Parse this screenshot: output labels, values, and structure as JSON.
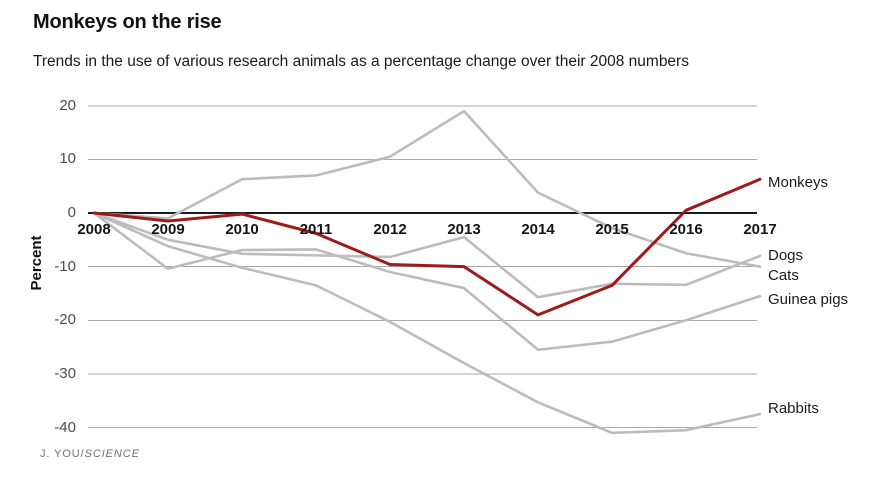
{
  "header": {
    "title": "Monkeys on the rise",
    "subtitle": "Trends in the use of various research animals as a percentage change over their 2008 numbers"
  },
  "credit": {
    "author": "J. YOU/",
    "publication": "SCIENCE"
  },
  "chart_data": {
    "type": "line",
    "title": "Monkeys on the rise",
    "subtitle": "Trends in the use of various research animals as a percentage change over their 2008 numbers",
    "x": [
      2008,
      2009,
      2010,
      2011,
      2012,
      2013,
      2014,
      2015,
      2016,
      2017
    ],
    "xlabel": "",
    "ylabel": "Percent",
    "ylim": [
      -40,
      20
    ],
    "yticks": [
      20,
      10,
      0,
      -10,
      -20,
      -30,
      -40
    ],
    "grid": "horizontal-only",
    "legend_position": "right-edge-inline-labels",
    "colors": {
      "highlight": "#9e1b1b",
      "muted": "#bcbcbc",
      "zero_axis": "#1a1a1a",
      "gridline": "#a9a9a9"
    },
    "series": [
      {
        "name": "Cats",
        "color": "#bcbcbc",
        "highlight": false,
        "values": [
          0,
          -1,
          6.3,
          7,
          10.5,
          19,
          3.8,
          -2.8,
          -7.5,
          -10
        ]
      },
      {
        "name": "Dogs",
        "color": "#bcbcbc",
        "highlight": false,
        "values": [
          0,
          -5,
          -7.6,
          -7.9,
          -8.2,
          -4.5,
          -15.7,
          -13.2,
          -13.4,
          -8
        ]
      },
      {
        "name": "Guinea pigs",
        "color": "#bcbcbc",
        "highlight": false,
        "values": [
          0,
          -10.4,
          -6.9,
          -6.8,
          -11,
          -14,
          -25.5,
          -24,
          -20,
          -15.5
        ]
      },
      {
        "name": "Rabbits",
        "color": "#bcbcbc",
        "highlight": false,
        "values": [
          0,
          -6.2,
          -10.2,
          -13.5,
          -20.3,
          -28,
          -35.3,
          -41,
          -40.5,
          -37.5
        ]
      },
      {
        "name": "Monkeys",
        "color": "#9e1b1b",
        "highlight": true,
        "values": [
          0,
          -1.5,
          -0.2,
          -3.8,
          -9.6,
          -10,
          -19,
          -13.5,
          0.5,
          6.3
        ]
      }
    ]
  }
}
